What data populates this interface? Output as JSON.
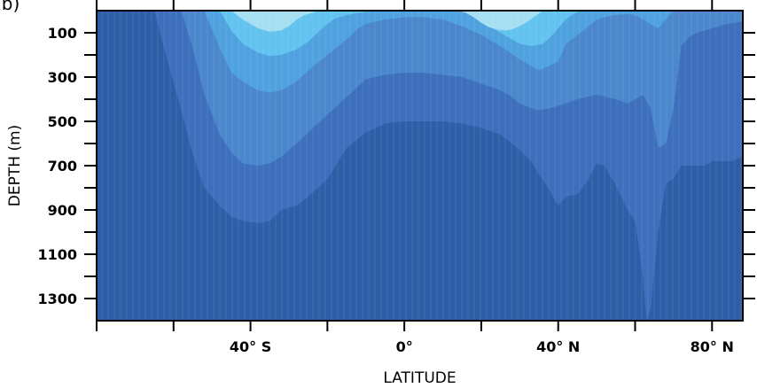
{
  "chart_data": {
    "type": "heatmap",
    "panel_label": "(b)",
    "xlabel": "LATITUDE",
    "ylabel": "DEPTH (m)",
    "x_unit": "degrees latitude (negative = S)",
    "y_unit": "m",
    "xlim": [
      -80,
      88
    ],
    "ylim": [
      0,
      1400
    ],
    "x_major_ticks": [
      -80,
      -60,
      -40,
      -20,
      0,
      20,
      40,
      60,
      80
    ],
    "x_tick_labels": [
      {
        "value": -40,
        "label": "40° S"
      },
      {
        "value": 0,
        "label": "0°"
      },
      {
        "value": 40,
        "label": "40° N"
      },
      {
        "value": 80,
        "label": "80° N"
      }
    ],
    "y_major_ticks": [
      0,
      100,
      200,
      300,
      400,
      500,
      600,
      700,
      800,
      900,
      1000,
      1100,
      1200,
      1300
    ],
    "y_tick_labels": [
      {
        "value": 100,
        "label": "100"
      },
      {
        "value": 300,
        "label": "300"
      },
      {
        "value": 500,
        "label": "500"
      },
      {
        "value": 700,
        "label": "700"
      },
      {
        "value": 900,
        "label": "900"
      },
      {
        "value": 1100,
        "label": "1100"
      },
      {
        "value": 1300,
        "label": "1300"
      }
    ],
    "fill_levels": [
      {
        "level": 0,
        "color": "#2f5ea8"
      },
      {
        "level": 1,
        "color": "#3d6fbd"
      },
      {
        "level": 2,
        "color": "#4a87cc"
      },
      {
        "level": 3,
        "color": "#4fa2df"
      },
      {
        "level": 4,
        "color": "#62c3ef"
      },
      {
        "level": 5,
        "color": "#a6dff2"
      }
    ],
    "contours": [
      {
        "level": 1,
        "lat": [
          -65,
          -62,
          -58,
          -55,
          -52,
          -48,
          -45,
          -42,
          -38,
          -35,
          -32,
          -28,
          -25,
          -20,
          -15,
          -10,
          -5,
          0,
          5,
          10,
          15,
          20,
          25,
          28,
          30,
          33,
          35,
          37,
          40,
          42,
          45,
          48,
          50,
          52,
          55,
          58,
          60,
          62,
          63,
          64,
          66,
          68,
          70,
          72,
          75,
          78,
          80,
          83,
          85,
          88
        ],
        "depth": [
          0,
          200,
          450,
          650,
          800,
          880,
          930,
          950,
          960,
          950,
          900,
          880,
          840,
          760,
          620,
          550,
          510,
          500,
          500,
          500,
          510,
          530,
          560,
          600,
          630,
          680,
          740,
          790,
          880,
          840,
          830,
          760,
          690,
          700,
          790,
          900,
          950,
          1200,
          1400,
          1350,
          1000,
          780,
          760,
          700,
          700,
          700,
          680,
          680,
          680,
          660
        ]
      },
      {
        "level": 2,
        "lat": [
          -58,
          -55,
          -52,
          -48,
          -45,
          -42,
          -38,
          -35,
          -32,
          -28,
          -25,
          -20,
          -15,
          -10,
          -5,
          0,
          5,
          10,
          15,
          20,
          25,
          28,
          30,
          33,
          35,
          38,
          40,
          45,
          50,
          55,
          58,
          60,
          62,
          64,
          66,
          68,
          70,
          72,
          74,
          76,
          78,
          80,
          84,
          88
        ],
        "depth": [
          0,
          170,
          380,
          560,
          640,
          690,
          700,
          690,
          660,
          600,
          550,
          470,
          390,
          310,
          290,
          280,
          280,
          290,
          300,
          330,
          360,
          390,
          420,
          440,
          450,
          440,
          430,
          400,
          380,
          400,
          420,
          400,
          380,
          440,
          620,
          600,
          440,
          160,
          120,
          100,
          90,
          80,
          60,
          50
        ]
      },
      {
        "level": 3,
        "lat": [
          -52,
          -48,
          -45,
          -42,
          -38,
          -35,
          -32,
          -28,
          -25,
          -20,
          -15,
          -12,
          -10,
          -5,
          0,
          5,
          10,
          15,
          20,
          25,
          30,
          35,
          40,
          42,
          45,
          48,
          50,
          52,
          55,
          58,
          60,
          62,
          64,
          66,
          70
        ],
        "depth": [
          0,
          170,
          280,
          320,
          360,
          370,
          360,
          320,
          270,
          200,
          130,
          80,
          60,
          40,
          30,
          30,
          40,
          70,
          110,
          160,
          220,
          270,
          230,
          150,
          110,
          70,
          40,
          30,
          20,
          15,
          20,
          40,
          60,
          80,
          0
        ]
      },
      {
        "level": 4,
        "lat": [
          -48,
          -45,
          -42,
          -38,
          -35,
          -32,
          -28,
          -25,
          -22,
          -20,
          -18,
          -15,
          -12,
          -8,
          -5,
          0,
          5,
          8,
          10,
          12,
          15,
          18,
          20,
          22,
          25,
          28,
          30,
          33,
          36,
          38,
          40,
          42,
          44,
          46
        ],
        "depth": [
          0,
          90,
          150,
          190,
          205,
          200,
          175,
          140,
          90,
          60,
          35,
          20,
          10,
          0,
          0,
          0,
          0,
          0,
          0,
          0,
          5,
          20,
          45,
          70,
          100,
          130,
          150,
          160,
          150,
          120,
          80,
          40,
          15,
          0
        ]
      },
      {
        "level": 5,
        "lat": [
          -45,
          -42,
          -38,
          -35,
          -32,
          -30,
          -28,
          -26,
          -24,
          -22,
          14,
          16,
          18,
          20,
          22,
          24,
          26,
          28,
          30,
          32,
          34,
          36
        ],
        "depth": [
          0,
          40,
          80,
          95,
          90,
          70,
          40,
          20,
          10,
          0,
          0,
          10,
          30,
          55,
          75,
          85,
          90,
          85,
          70,
          50,
          25,
          0
        ]
      }
    ]
  }
}
